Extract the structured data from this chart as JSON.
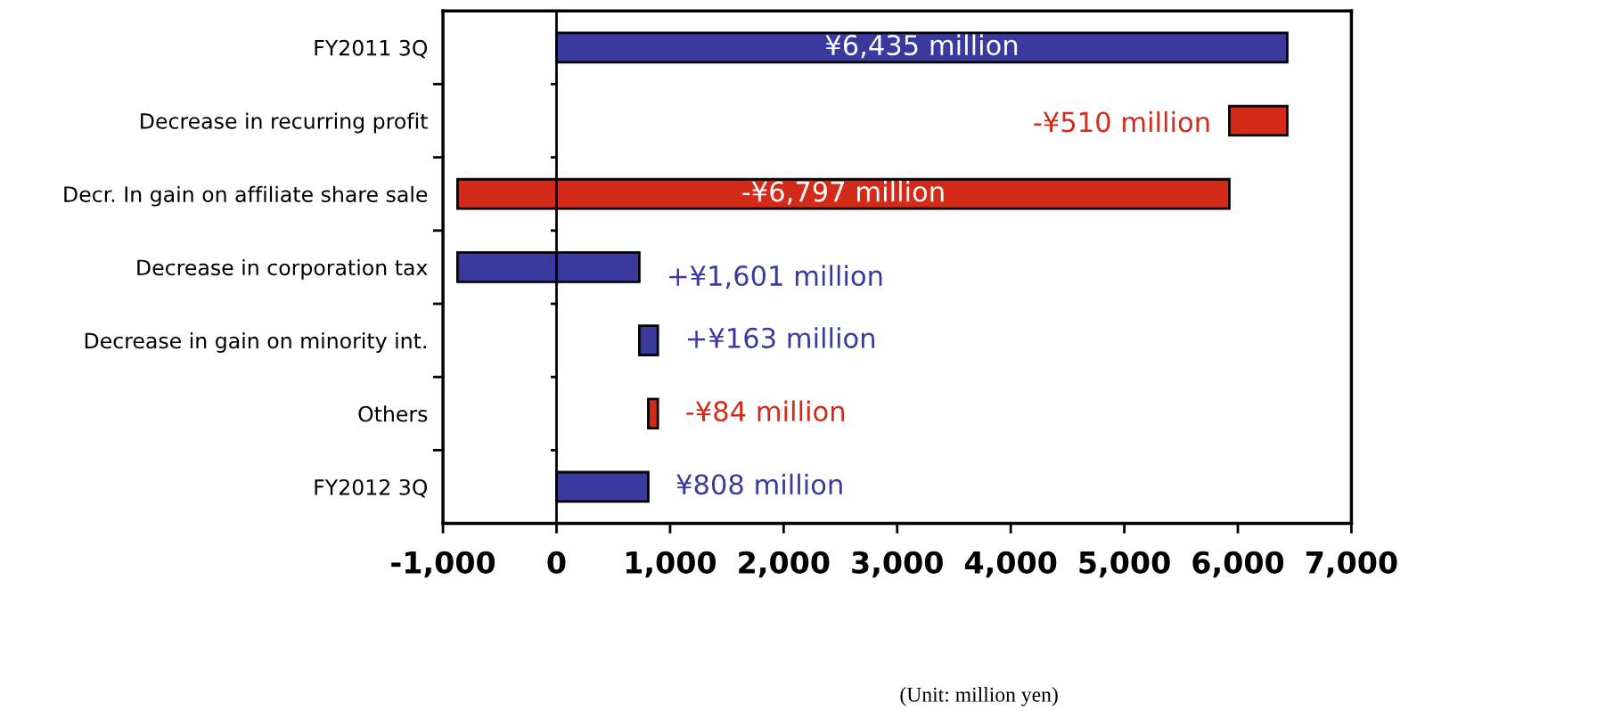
{
  "chart_data": {
    "type": "bar",
    "orientation": "horizontal",
    "categories": [
      "FY2011 3Q",
      "Decrease in recurring profit",
      "Decr. In gain on affiliate share sale",
      "Decrease in corporation tax",
      "Decrease in gain on minority int.",
      "Others",
      "FY2012 3Q"
    ],
    "values": [
      6435,
      -510,
      -6797,
      1601,
      163,
      -84,
      808
    ],
    "base": [
      0,
      6435,
      5925,
      -872,
      729,
      892,
      0
    ],
    "colors": [
      "#3a3a9e",
      "#d42a1a",
      "#d42a1a",
      "#3a3a9e",
      "#3a3a9e",
      "#d42a1a",
      "#3a3a9e"
    ],
    "value_labels": [
      "¥6,435 million",
      "-¥510 million",
      "-¥6,797 million",
      "+¥1,601 million",
      "+¥163 million",
      "-¥84 million",
      "¥808 million"
    ],
    "xlim": [
      -1000,
      7000
    ],
    "xticks": [
      {
        "value": -1000,
        "label": "-1,000"
      },
      0,
      {
        "value": 1000,
        "label": "1,000"
      },
      {
        "value": 2000,
        "label": "2,000"
      },
      {
        "value": 3000,
        "label": "3,000"
      },
      {
        "value": 4000,
        "label": "4,000"
      },
      {
        "value": 5000,
        "label": "5,000"
      },
      {
        "value": 6000,
        "label": "6,000"
      },
      {
        "value": 7000,
        "label": "7,000"
      }
    ],
    "ref_lines": [
      {
        "axis": "x",
        "value": 0,
        "color": "#000000"
      }
    ],
    "annotations": [
      "(Unit: million yen)"
    ],
    "grid": false,
    "legend": false
  }
}
